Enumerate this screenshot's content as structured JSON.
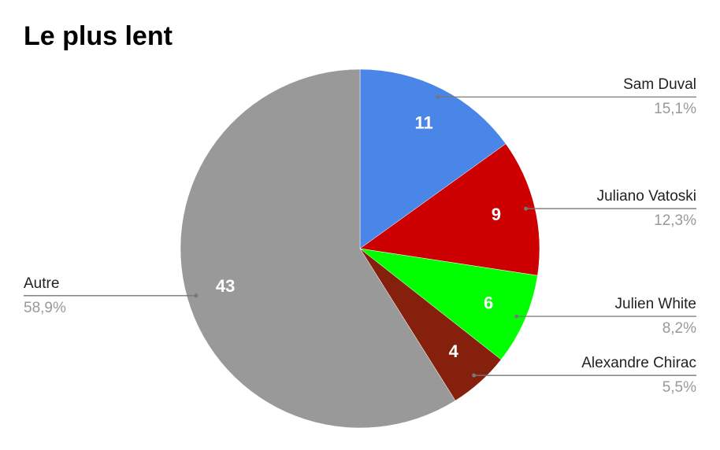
{
  "chart_data": {
    "type": "pie",
    "title": "Le plus lent",
    "categories": [
      "Sam Duval",
      "Juliano Vatoski",
      "Julien White",
      "Alexandre Chirac",
      "Autre"
    ],
    "values": [
      11,
      9,
      6,
      4,
      43
    ],
    "percent_labels": [
      "15,1%",
      "12,3%",
      "8,2%",
      "5,5%",
      "58,9%"
    ],
    "colors": [
      "#4a86e8",
      "#cc0000",
      "#00ff00",
      "#85200c",
      "#999999"
    ]
  }
}
